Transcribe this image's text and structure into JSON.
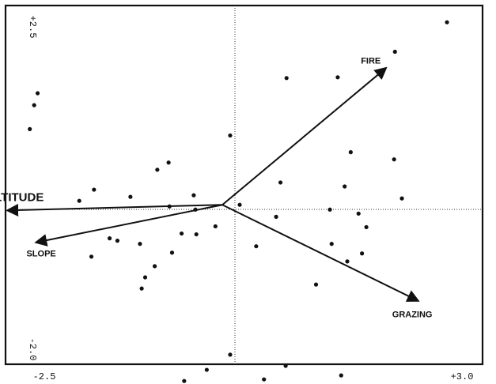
{
  "chart_data": {
    "type": "scatter",
    "title": "",
    "xlabel": "",
    "ylabel": "",
    "xlim": [
      -2.5,
      3.0
    ],
    "ylim": [
      -2.0,
      2.5
    ],
    "grid": false,
    "legend": "none",
    "axis_labels": {
      "x_min": "-2.5",
      "x_max": "+3.0",
      "y_min": "-2.0",
      "y_max": "+2.5"
    },
    "points": [
      {
        "x": 2.59,
        "y": 2.29
      },
      {
        "x": 1.99,
        "y": 1.92
      },
      {
        "x": 1.33,
        "y": 1.6
      },
      {
        "x": 0.74,
        "y": 1.59
      },
      {
        "x": -2.13,
        "y": 1.4
      },
      {
        "x": -2.17,
        "y": 1.25
      },
      {
        "x": -2.22,
        "y": 0.95
      },
      {
        "x": 0.09,
        "y": 0.87
      },
      {
        "x": 1.48,
        "y": 0.66
      },
      {
        "x": 1.98,
        "y": 0.57
      },
      {
        "x": -0.62,
        "y": 0.53
      },
      {
        "x": -0.75,
        "y": 0.44
      },
      {
        "x": 0.67,
        "y": 0.28
      },
      {
        "x": 1.41,
        "y": 0.23
      },
      {
        "x": -1.48,
        "y": 0.19
      },
      {
        "x": -0.33,
        "y": 0.12
      },
      {
        "x": -1.06,
        "y": 0.1
      },
      {
        "x": 2.07,
        "y": 0.08
      },
      {
        "x": -1.65,
        "y": 0.05
      },
      {
        "x": 0.2,
        "y": 0.0
      },
      {
        "x": -0.61,
        "y": -0.02
      },
      {
        "x": -0.31,
        "y": -0.06
      },
      {
        "x": 1.24,
        "y": -0.06
      },
      {
        "x": 1.57,
        "y": -0.11
      },
      {
        "x": 0.62,
        "y": -0.15
      },
      {
        "x": 1.66,
        "y": -0.28
      },
      {
        "x": -0.08,
        "y": -0.27
      },
      {
        "x": -0.47,
        "y": -0.36
      },
      {
        "x": -0.3,
        "y": -0.37
      },
      {
        "x": -1.3,
        "y": -0.42
      },
      {
        "x": -1.21,
        "y": -0.45
      },
      {
        "x": -0.95,
        "y": -0.49
      },
      {
        "x": 0.39,
        "y": -0.52
      },
      {
        "x": 1.26,
        "y": -0.49
      },
      {
        "x": -0.58,
        "y": -0.6
      },
      {
        "x": 1.61,
        "y": -0.61
      },
      {
        "x": -1.51,
        "y": -0.65
      },
      {
        "x": 1.44,
        "y": -0.71
      },
      {
        "x": -0.78,
        "y": -0.77
      },
      {
        "x": -0.89,
        "y": -0.91
      },
      {
        "x": 1.08,
        "y": -1.0
      },
      {
        "x": -0.93,
        "y": -1.05
      },
      {
        "x": 0.09,
        "y": -1.88
      },
      {
        "x": 0.73,
        "y": -2.02
      },
      {
        "x": -0.18,
        "y": -2.07
      },
      {
        "x": 1.37,
        "y": -2.14
      },
      {
        "x": 0.48,
        "y": -2.19
      },
      {
        "x": -0.44,
        "y": -2.21
      }
    ],
    "vectors": [
      {
        "label": "FIRE",
        "x": 1.88,
        "y": 1.71
      },
      {
        "label": "ALTITUDE",
        "x": -2.47,
        "y": -0.07
      },
      {
        "label": "SLOPE",
        "x": -2.14,
        "y": -0.47
      },
      {
        "label": "GRAZING",
        "x": 2.25,
        "y": -1.2
      }
    ]
  }
}
